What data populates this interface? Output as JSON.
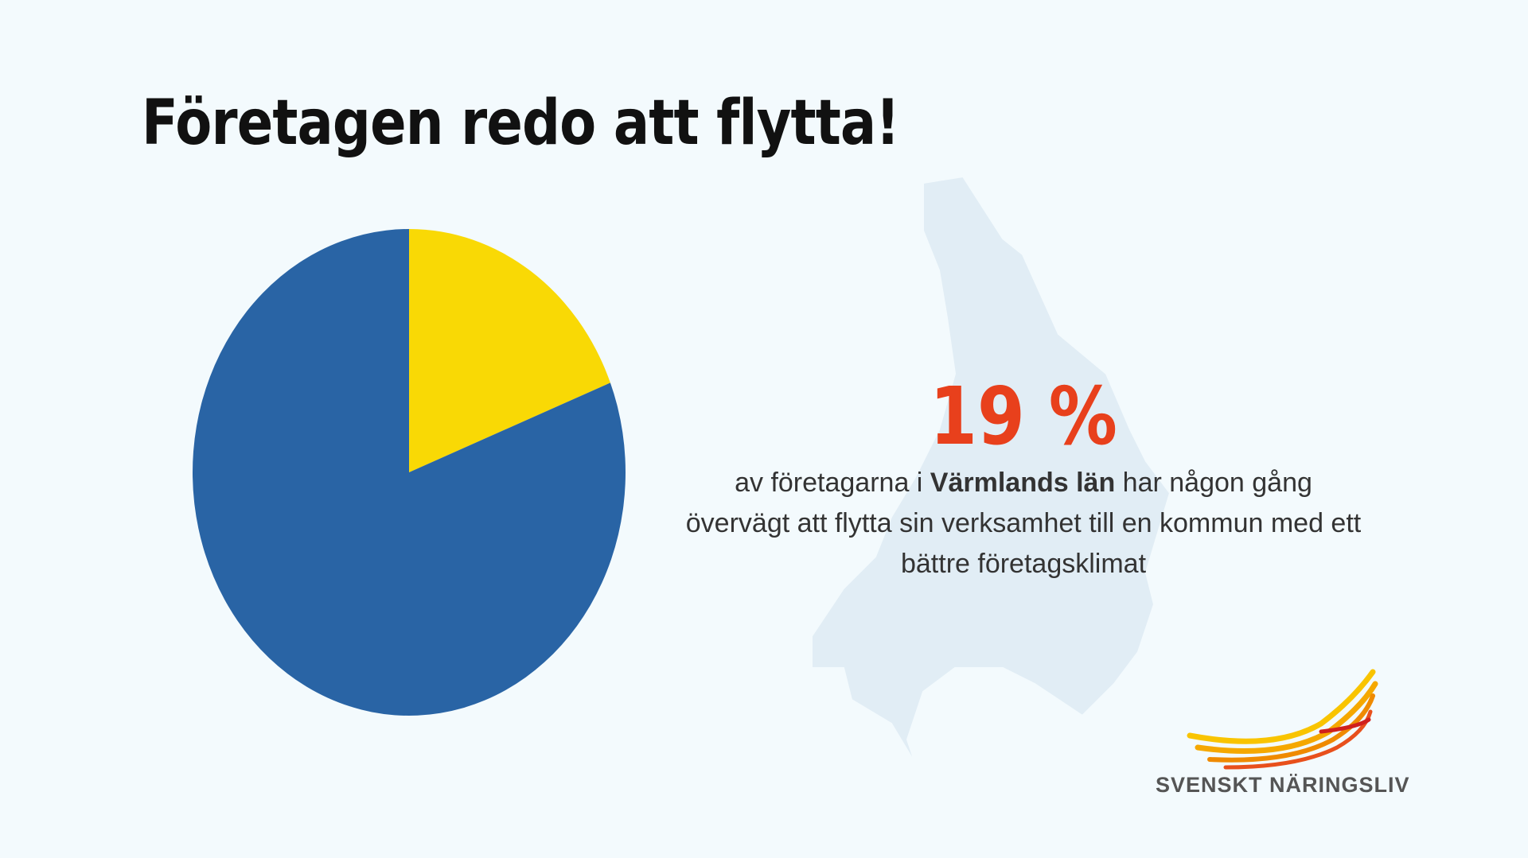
{
  "chart_data": {
    "type": "pie",
    "title": "Företagen redo att flytta!",
    "values": [
      19,
      81
    ],
    "colors": [
      "#f9d905",
      "#2964a5"
    ],
    "stat": "19 %",
    "description": [
      "av företagarna i ",
      "Värmlands län",
      " har någon gång övervägt att flytta sin verksamhet till en kommun med ett bättre företagsklimat"
    ]
  },
  "logo": {
    "text": "SVENSKT NÄRINGSLIV"
  }
}
